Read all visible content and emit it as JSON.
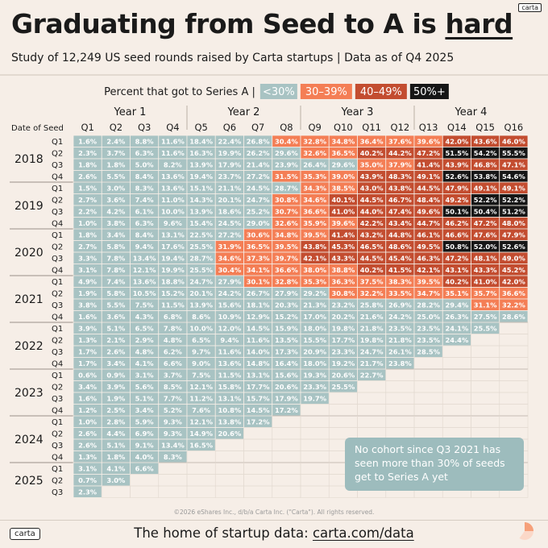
{
  "header": {
    "title_main": "Graduating from Seed to A is ",
    "title_emph": "hard",
    "subtitle": "Study of 12,249 US seed rounds raised by Carta startups | Data as of Q4 2025",
    "brand_tag": "carta"
  },
  "legend": {
    "label": "Percent that got to Series A  |",
    "buckets": [
      {
        "label": "<30%",
        "color": "#a8c3c3",
        "text_color": "#ffffff"
      },
      {
        "label": "30–39%",
        "color": "#f47e55",
        "text_color": "#ffffff"
      },
      {
        "label": "40–49%",
        "color": "#c34d30",
        "text_color": "#ffffff"
      },
      {
        "label": "50%+",
        "color": "#161616",
        "text_color": "#ffffff"
      }
    ]
  },
  "chart_data": {
    "type": "heatmap",
    "row_axis_label": "Date of Seed",
    "column_groups": [
      "Year 1",
      "Year 2",
      "Year 3",
      "Year 4"
    ],
    "columns": [
      "Q1",
      "Q2",
      "Q3",
      "Q4",
      "Q5",
      "Q6",
      "Q7",
      "Q8",
      "Q9",
      "Q10",
      "Q11",
      "Q12",
      "Q13",
      "Q14",
      "Q15",
      "Q16"
    ],
    "cohorts": [
      {
        "year": "2018",
        "quarters": [
          [
            "1.6%",
            "2.4%",
            "8.8%",
            "11.6%",
            "18.4%",
            "22.4%",
            "26.8%",
            "30.4%",
            "32.8%",
            "34.8%",
            "36.4%",
            "37.6%",
            "39.6%",
            "42.0%",
            "43.6%",
            "46.0%"
          ],
          [
            "2.3%",
            "3.7%",
            "6.3%",
            "11.6%",
            "16.3%",
            "19.9%",
            "26.2%",
            "29.6%",
            "32.6%",
            "36.5%",
            "40.2%",
            "44.2%",
            "47.2%",
            "51.5%",
            "54.2%",
            "55.5%"
          ],
          [
            "1.8%",
            "1.8%",
            "5.0%",
            "8.2%",
            "13.9%",
            "17.9%",
            "21.4%",
            "23.9%",
            "26.4%",
            "29.6%",
            "35.0%",
            "37.9%",
            "41.4%",
            "43.9%",
            "46.8%",
            "47.1%"
          ],
          [
            "2.6%",
            "5.5%",
            "8.4%",
            "13.6%",
            "19.4%",
            "23.7%",
            "27.2%",
            "31.5%",
            "35.3%",
            "39.0%",
            "43.9%",
            "48.3%",
            "49.1%",
            "52.6%",
            "53.8%",
            "54.6%"
          ]
        ]
      },
      {
        "year": "2019",
        "quarters": [
          [
            "1.5%",
            "3.0%",
            "8.3%",
            "13.6%",
            "15.1%",
            "21.1%",
            "24.5%",
            "28.7%",
            "34.3%",
            "38.5%",
            "43.0%",
            "43.8%",
            "44.5%",
            "47.9%",
            "49.1%",
            "49.1%"
          ],
          [
            "2.7%",
            "3.6%",
            "7.4%",
            "11.0%",
            "14.3%",
            "20.1%",
            "24.7%",
            "30.8%",
            "34.6%",
            "40.1%",
            "44.5%",
            "46.7%",
            "48.4%",
            "49.2%",
            "52.2%",
            "52.2%"
          ],
          [
            "2.2%",
            "4.2%",
            "6.1%",
            "10.0%",
            "13.9%",
            "18.6%",
            "25.2%",
            "30.7%",
            "36.6%",
            "41.0%",
            "44.0%",
            "47.4%",
            "49.6%",
            "50.1%",
            "50.4%",
            "51.2%"
          ],
          [
            "1.0%",
            "3.8%",
            "6.3%",
            "9.6%",
            "15.4%",
            "24.5%",
            "29.0%",
            "32.6%",
            "35.9%",
            "39.6%",
            "42.2%",
            "43.4%",
            "44.7%",
            "46.2%",
            "47.2%",
            "48.0%"
          ]
        ]
      },
      {
        "year": "2020",
        "quarters": [
          [
            "1.8%",
            "3.4%",
            "8.4%",
            "13.1%",
            "22.5%",
            "27.2%",
            "30.6%",
            "34.8%",
            "39.5%",
            "41.4%",
            "43.2%",
            "44.8%",
            "46.1%",
            "46.6%",
            "47.6%",
            "47.9%"
          ],
          [
            "2.7%",
            "5.8%",
            "9.4%",
            "17.6%",
            "25.5%",
            "31.9%",
            "36.5%",
            "39.5%",
            "43.8%",
            "45.3%",
            "46.5%",
            "48.6%",
            "49.5%",
            "50.8%",
            "52.0%",
            "52.6%"
          ],
          [
            "3.3%",
            "7.8%",
            "13.4%",
            "19.4%",
            "28.7%",
            "34.6%",
            "37.3%",
            "39.7%",
            "42.1%",
            "43.3%",
            "44.5%",
            "45.4%",
            "46.3%",
            "47.2%",
            "48.1%",
            "49.0%"
          ],
          [
            "3.1%",
            "7.8%",
            "12.1%",
            "19.9%",
            "25.5%",
            "30.4%",
            "34.1%",
            "36.6%",
            "38.0%",
            "38.8%",
            "40.2%",
            "41.5%",
            "42.1%",
            "43.1%",
            "43.3%",
            "45.2%"
          ]
        ]
      },
      {
        "year": "2021",
        "quarters": [
          [
            "4.9%",
            "7.4%",
            "13.6%",
            "18.8%",
            "24.7%",
            "27.9%",
            "30.1%",
            "32.8%",
            "35.3%",
            "36.3%",
            "37.5%",
            "38.3%",
            "39.5%",
            "40.2%",
            "41.0%",
            "42.0%"
          ],
          [
            "1.9%",
            "5.8%",
            "10.5%",
            "15.2%",
            "20.1%",
            "24.2%",
            "26.7%",
            "27.9%",
            "29.2%",
            "30.8%",
            "32.2%",
            "33.5%",
            "34.7%",
            "35.1%",
            "35.7%",
            "36.6%"
          ],
          [
            "3.8%",
            "5.5%",
            "7.5%",
            "11.5%",
            "13.9%",
            "15.6%",
            "18.1%",
            "20.3%",
            "21.3%",
            "23.2%",
            "25.8%",
            "26.9%",
            "28.2%",
            "29.4%",
            "31.1%",
            "32.2%"
          ],
          [
            "1.6%",
            "3.6%",
            "4.3%",
            "6.8%",
            "8.6%",
            "10.9%",
            "12.9%",
            "15.2%",
            "17.0%",
            "20.2%",
            "21.6%",
            "24.2%",
            "25.0%",
            "26.3%",
            "27.5%",
            "28.6%"
          ]
        ]
      },
      {
        "year": "2022",
        "quarters": [
          [
            "3.9%",
            "5.1%",
            "6.5%",
            "7.8%",
            "10.0%",
            "12.0%",
            "14.5%",
            "15.9%",
            "18.0%",
            "19.8%",
            "21.8%",
            "23.5%",
            "23.5%",
            "24.1%",
            "25.5%"
          ],
          [
            "1.3%",
            "2.1%",
            "2.9%",
            "4.8%",
            "6.5%",
            "9.4%",
            "11.6%",
            "13.5%",
            "15.5%",
            "17.7%",
            "19.8%",
            "21.8%",
            "23.5%",
            "24.4%"
          ],
          [
            "1.7%",
            "2.6%",
            "4.8%",
            "6.2%",
            "9.7%",
            "11.6%",
            "14.0%",
            "17.3%",
            "20.9%",
            "23.3%",
            "24.7%",
            "26.1%",
            "28.5%"
          ],
          [
            "1.7%",
            "3.4%",
            "4.1%",
            "6.6%",
            "9.0%",
            "13.6%",
            "14.8%",
            "16.4%",
            "18.0%",
            "19.2%",
            "21.7%",
            "23.8%"
          ]
        ]
      },
      {
        "year": "2023",
        "quarters": [
          [
            "0.6%",
            "0.9%",
            "3.1%",
            "3.7%",
            "7.5%",
            "11.5%",
            "13.1%",
            "15.6%",
            "19.3%",
            "20.6%",
            "22.7%"
          ],
          [
            "3.4%",
            "3.9%",
            "5.6%",
            "8.5%",
            "12.1%",
            "15.8%",
            "17.7%",
            "20.6%",
            "23.3%",
            "25.5%"
          ],
          [
            "1.6%",
            "1.9%",
            "5.1%",
            "7.7%",
            "11.2%",
            "13.1%",
            "15.7%",
            "17.9%",
            "19.7%"
          ],
          [
            "1.2%",
            "2.5%",
            "3.4%",
            "5.2%",
            "7.6%",
            "10.8%",
            "14.5%",
            "17.2%"
          ]
        ]
      },
      {
        "year": "2024",
        "quarters": [
          [
            "1.0%",
            "2.8%",
            "5.9%",
            "9.3%",
            "12.1%",
            "13.8%",
            "17.2%"
          ],
          [
            "2.6%",
            "4.4%",
            "6.9%",
            "9.3%",
            "14.9%",
            "20.6%"
          ],
          [
            "2.6%",
            "5.1%",
            "9.1%",
            "13.4%",
            "16.5%"
          ],
          [
            "1.3%",
            "1.8%",
            "4.0%",
            "8.3%"
          ]
        ]
      },
      {
        "year": "2025",
        "quarters": [
          [
            "3.1%",
            "4.1%",
            "6.6%"
          ],
          [
            "0.7%",
            "3.0%"
          ],
          [
            "2.3%"
          ]
        ]
      }
    ]
  },
  "callout": {
    "lines": [
      "No cohort since Q3 2021 has",
      "seen more than 30% of seeds",
      "get to Series A yet"
    ]
  },
  "footer": {
    "copyright": "©2026 eShares Inc., d/b/a Carta Inc. (\"Carta\"). All rights reserved.",
    "logo": "carta",
    "tagline_prefix": "The home of startup data: ",
    "tagline_link": "carta.com/data"
  }
}
